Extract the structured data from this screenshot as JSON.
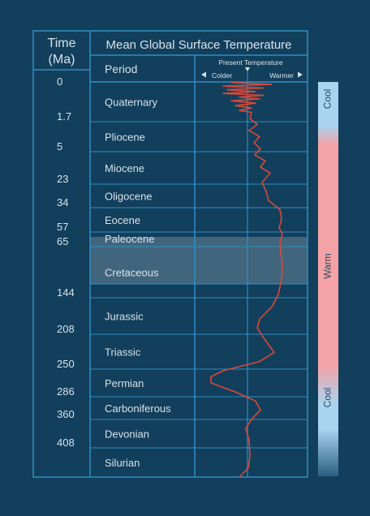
{
  "colors": {
    "background": "#123f5c",
    "grid": "#2f8ec4",
    "text": "#d8e2ea",
    "temperature_line": "#d9493a",
    "band_cool": "#a8d4f0",
    "band_warm": "#f3a3a6",
    "band_dark": "#2b5f80",
    "highlight": "#ffffff"
  },
  "labels": {
    "time_header_line1": "Time",
    "time_header_line2": "(Ma)",
    "title": "Mean Global Surface Temperature",
    "period_header": "Period",
    "present_temperature": "Present Temperature",
    "colder": "Colder",
    "warmer": "Warmer"
  },
  "chart_data": {
    "type": "line",
    "title": "Mean Global Surface Temperature",
    "xlabel": "",
    "ylabel": "Time (Ma)",
    "x_direction": [
      "Colder",
      "Warmer"
    ],
    "reference_line": "Present Temperature",
    "time_ticks": [
      "0",
      "1.7",
      "5",
      "23",
      "34",
      "57",
      "65",
      "144",
      "208",
      "250",
      "286",
      "360",
      "408"
    ],
    "periods": [
      {
        "name": "Quaternary"
      },
      {
        "name": "Pliocene"
      },
      {
        "name": "Miocene"
      },
      {
        "name": "Oligocene"
      },
      {
        "name": "Eocene"
      },
      {
        "name": "Paleocene"
      },
      {
        "name": "Cretaceous",
        "highlighted": true
      },
      {
        "name": "Jurassic"
      },
      {
        "name": "Triassic"
      },
      {
        "name": "Permian"
      },
      {
        "name": "Carboniferous"
      },
      {
        "name": "Devonian"
      },
      {
        "name": "Silurian"
      }
    ],
    "series": [
      {
        "note": "relative temperature, 0 = present, positive = warmer; y = row position (0 = top of Quaternary, 13 = bottom of Silurian)",
        "points": [
          [
            0.02,
            -2
          ],
          [
            0.08,
            3
          ],
          [
            0.14,
            -3
          ],
          [
            0.2,
            2
          ],
          [
            0.26,
            -2.5
          ],
          [
            0.32,
            1
          ],
          [
            0.38,
            -3
          ],
          [
            0.44,
            2
          ],
          [
            0.5,
            -1
          ],
          [
            0.56,
            1.5
          ],
          [
            0.62,
            -2
          ],
          [
            0.7,
            1
          ],
          [
            0.78,
            -1.5
          ],
          [
            0.86,
            0.5
          ],
          [
            0.94,
            -1
          ],
          [
            1.0,
            0.5
          ],
          [
            1.2,
            0.3
          ],
          [
            1.4,
            1.2
          ],
          [
            1.6,
            0.2
          ],
          [
            1.8,
            1.5
          ],
          [
            2.0,
            0.8
          ],
          [
            2.2,
            1.6
          ],
          [
            2.4,
            0.9
          ],
          [
            2.6,
            2.2
          ],
          [
            2.8,
            1.6
          ],
          [
            3.0,
            2.8
          ],
          [
            3.3,
            1.8
          ],
          [
            3.6,
            2.3
          ],
          [
            3.9,
            2.6
          ],
          [
            4.2,
            4.0
          ],
          [
            4.5,
            4.2
          ],
          [
            4.8,
            3.9
          ],
          [
            5.0,
            4.3
          ],
          [
            5.3,
            4.0
          ],
          [
            5.6,
            4.1
          ],
          [
            6.0,
            4.3
          ],
          [
            6.5,
            4.2
          ],
          [
            7.0,
            3.8
          ],
          [
            7.4,
            3.0
          ],
          [
            7.8,
            1.5
          ],
          [
            8.1,
            1.2
          ],
          [
            8.5,
            2.2
          ],
          [
            8.9,
            3.3
          ],
          [
            9.2,
            1.5
          ],
          [
            9.5,
            -3.0
          ],
          [
            9.7,
            -4.5
          ],
          [
            9.9,
            -4.5
          ],
          [
            10.2,
            -1.5
          ],
          [
            10.5,
            1.0
          ],
          [
            10.8,
            1.6
          ],
          [
            11.1,
            0.5
          ],
          [
            11.4,
            -0.2
          ],
          [
            11.8,
            0.2
          ],
          [
            12.3,
            0.3
          ],
          [
            12.7,
            0.1
          ],
          [
            13.0,
            -1.0
          ]
        ]
      }
    ],
    "side_band": [
      "Cool",
      "Warm",
      "Cool"
    ]
  }
}
